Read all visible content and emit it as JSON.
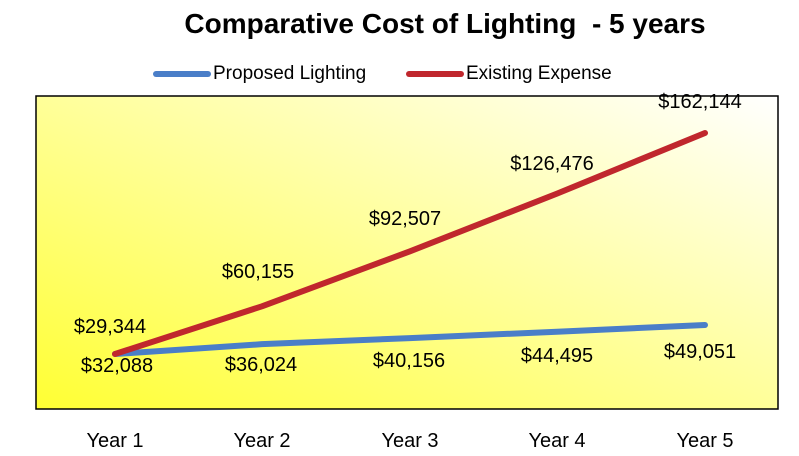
{
  "chart_data": {
    "type": "line",
    "title": "Comparative Cost of Lighting  - 5 years",
    "categories": [
      "Year 1",
      "Year 2",
      "Year 3",
      "Year 4",
      "Year 5"
    ],
    "series": [
      {
        "name": "Proposed Lighting",
        "color": "#4A7EC8",
        "values": [
          29344,
          36024,
          40156,
          44495,
          49051
        ],
        "labels": [
          "$29,344",
          "$36,024",
          "$40,156",
          "$44,495",
          "$49,051"
        ]
      },
      {
        "name": "Existing Expense",
        "color": "#C0272D",
        "values": [
          32088,
          60155,
          92507,
          126476,
          162144
        ],
        "labels": [
          "$32,088",
          "$60,155",
          "$92,507",
          "$126,476",
          "$162,144"
        ]
      }
    ],
    "xlabel": "",
    "ylabel": "",
    "ylim": [
      0,
      180000
    ],
    "grid": false,
    "legend_position": "top",
    "background_gradient": [
      "#FFFF33",
      "#FFFFFF"
    ]
  }
}
